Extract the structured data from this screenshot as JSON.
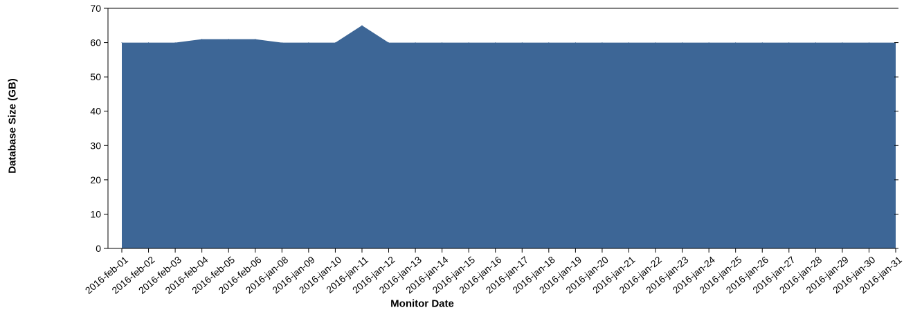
{
  "chart_data": {
    "type": "area",
    "xlabel": "Monitor Date",
    "ylabel": "Database Size (GB)",
    "ylim": [
      0,
      70
    ],
    "yticks": [
      0,
      10,
      20,
      30,
      40,
      50,
      60,
      70
    ],
    "grid": false,
    "color": "#3d6696",
    "categories": [
      "2016-feb-01",
      "2016-feb-02",
      "2016-feb-03",
      "2016-feb-04",
      "2016-feb-05",
      "2016-feb-06",
      "2016-jan-08",
      "2016-jan-09",
      "2016-jan-10",
      "2016-jan-11",
      "2016-jan-12",
      "2016-jan-13",
      "2016-jan-14",
      "2016-jan-15",
      "2016-jan-16",
      "2016-jan-17",
      "2016-jan-18",
      "2016-jan-19",
      "2016-jan-20",
      "2016-jan-21",
      "2016-jan-22",
      "2016-jan-23",
      "2016-jan-24",
      "2016-jan-25",
      "2016-jan-26",
      "2016-jan-27",
      "2016-jan-28",
      "2016-jan-29",
      "2016-jan-30",
      "2016-jan-31"
    ],
    "values": [
      60,
      60,
      60,
      61,
      61,
      61,
      60,
      60,
      60,
      65,
      60,
      60,
      60,
      60,
      60,
      60,
      60,
      60,
      60,
      60,
      60,
      60,
      60,
      60,
      60,
      60,
      60,
      60,
      60,
      60
    ]
  }
}
